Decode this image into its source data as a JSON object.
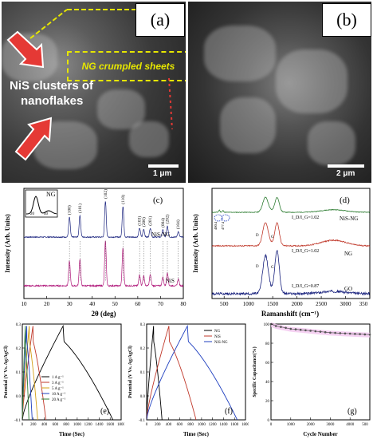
{
  "panels": {
    "a": {
      "label": "(a)",
      "scale": "1 μm",
      "annot_sheets": "NG crumpled sheets",
      "annot_clusters_1": "NiS clusters of",
      "annot_clusters_2": "nanoflakes"
    },
    "b": {
      "label": "(b)",
      "scale": "2 μm"
    },
    "c": {
      "label": "(c)"
    },
    "d": {
      "label": "(d)"
    },
    "e": {
      "label": "(e)"
    },
    "f": {
      "label": "(f)"
    },
    "g": {
      "label": "(g)"
    }
  },
  "chart_data": [
    {
      "id": "c",
      "type": "line",
      "xlabel": "2θ (deg)",
      "ylabel": "Intensity (Arb. Units)",
      "xlim": [
        10,
        80
      ],
      "xticks": [
        "10",
        "20",
        "30",
        "40",
        "50",
        "60",
        "70",
        "80"
      ],
      "series": [
        {
          "name": "NiS-NG",
          "color": "#1a237e"
        },
        {
          "name": "NiS",
          "color": "#b0177a"
        }
      ],
      "peaks": [
        {
          "x": 30.0,
          "label": "(100)"
        },
        {
          "x": 34.6,
          "label": "(101)"
        },
        {
          "x": 45.8,
          "label": "(102)"
        },
        {
          "x": 53.5,
          "label": "(110)"
        },
        {
          "x": 60.8,
          "label": "(103)"
        },
        {
          "x": 62.6,
          "label": "(200)"
        },
        {
          "x": 65.5,
          "label": "(201)"
        },
        {
          "x": 71.0,
          "label": "(004)"
        },
        {
          "x": 73.0,
          "label": "(202)"
        },
        {
          "x": 77.8,
          "label": "(104)"
        }
      ],
      "inset": {
        "label": "NG",
        "xticks": [
          "20",
          "40"
        ],
        "xlabel": "2θ"
      }
    },
    {
      "id": "d",
      "type": "line",
      "xlabel": "Ramanshift (cm⁻¹)",
      "ylabel": "Intensity (Arb. Units)",
      "xlim": [
        250,
        3500
      ],
      "xticks": [
        "500",
        "1000",
        "1500",
        "2000",
        "2500",
        "3000",
        "350"
      ],
      "series": [
        {
          "name": "NiS-NG",
          "color": "#2e7d32",
          "ratio": "I_D/I_G=1.02"
        },
        {
          "name": "NG",
          "color": "#c0392b",
          "ratio": "I_D/I_G=1.02"
        },
        {
          "name": "GO",
          "color": "#1a237e",
          "ratio": "I_D/I_G=0.87"
        }
      ],
      "band_labels": [
        "D",
        "G"
      ],
      "nis_peaks": [
        "400.4",
        "477.4"
      ]
    },
    {
      "id": "e",
      "type": "line",
      "xlabel": "Time (Sec)",
      "ylabel": "Potential (V Vs. Ag/AgCl)",
      "xlim": [
        0,
        1800
      ],
      "ylim": [
        -0.1,
        0.3
      ],
      "xticks": [
        "0",
        "200",
        "400",
        "600",
        "800",
        "1000",
        "1200",
        "1400",
        "1600",
        "1800"
      ],
      "yticks": [
        "-0.1",
        "0.0",
        "0.1",
        "0.2",
        "0.3"
      ],
      "series": [
        {
          "name": "1 A g⁻¹",
          "color": "#000000",
          "t_end": 1650
        },
        {
          "name": "3 A g⁻¹",
          "color": "#c0392b",
          "t_end": 430
        },
        {
          "name": "5 A g⁻¹",
          "color": "#d4a017",
          "t_end": 280
        },
        {
          "name": "10 A g⁻¹",
          "color": "#1f3fbf",
          "t_end": 180
        },
        {
          "name": "20 A g⁻¹",
          "color": "#2e7d32",
          "t_end": 120
        }
      ]
    },
    {
      "id": "f",
      "type": "line",
      "xlabel": "Time (Sec)",
      "ylabel": "Potential (V Vs. Ag/AgCl)",
      "xlim": [
        0,
        1800
      ],
      "ylim": [
        -0.1,
        0.3
      ],
      "xticks": [
        "0",
        "200",
        "400",
        "600",
        "800",
        "1000",
        "1200",
        "1400",
        "1600",
        "1800"
      ],
      "yticks": [
        "-0.1",
        "0.0",
        "0.1",
        "0.2",
        "0.3"
      ],
      "series": [
        {
          "name": "NG",
          "color": "#000000",
          "t_end": 280
        },
        {
          "name": "NiS",
          "color": "#c0392b",
          "t_end": 900
        },
        {
          "name": "NiS-NG",
          "color": "#1f3fbf",
          "t_end": 1650
        }
      ]
    },
    {
      "id": "g",
      "type": "scatter",
      "xlabel": "Cycle Number",
      "ylabel": "Specific Capacitance(%)",
      "xlim": [
        0,
        5000
      ],
      "ylim": [
        0,
        100
      ],
      "xticks": [
        "0",
        "1000",
        "2000",
        "3000",
        "4000",
        "500"
      ],
      "yticks": [
        "0",
        "20",
        "40",
        "60",
        "80",
        "100"
      ],
      "x": [
        0,
        250,
        500,
        750,
        1000,
        1250,
        1500,
        1750,
        2000,
        2250,
        2500,
        2750,
        3000,
        3250,
        3500,
        3750,
        4000,
        4250,
        4500,
        4750,
        5000
      ],
      "y": [
        100,
        98,
        97,
        96,
        95,
        94.5,
        94,
        93.5,
        93,
        92.5,
        92,
        91.5,
        91,
        90.8,
        90.5,
        90.2,
        90,
        89.7,
        89.5,
        89.2,
        89
      ]
    }
  ]
}
